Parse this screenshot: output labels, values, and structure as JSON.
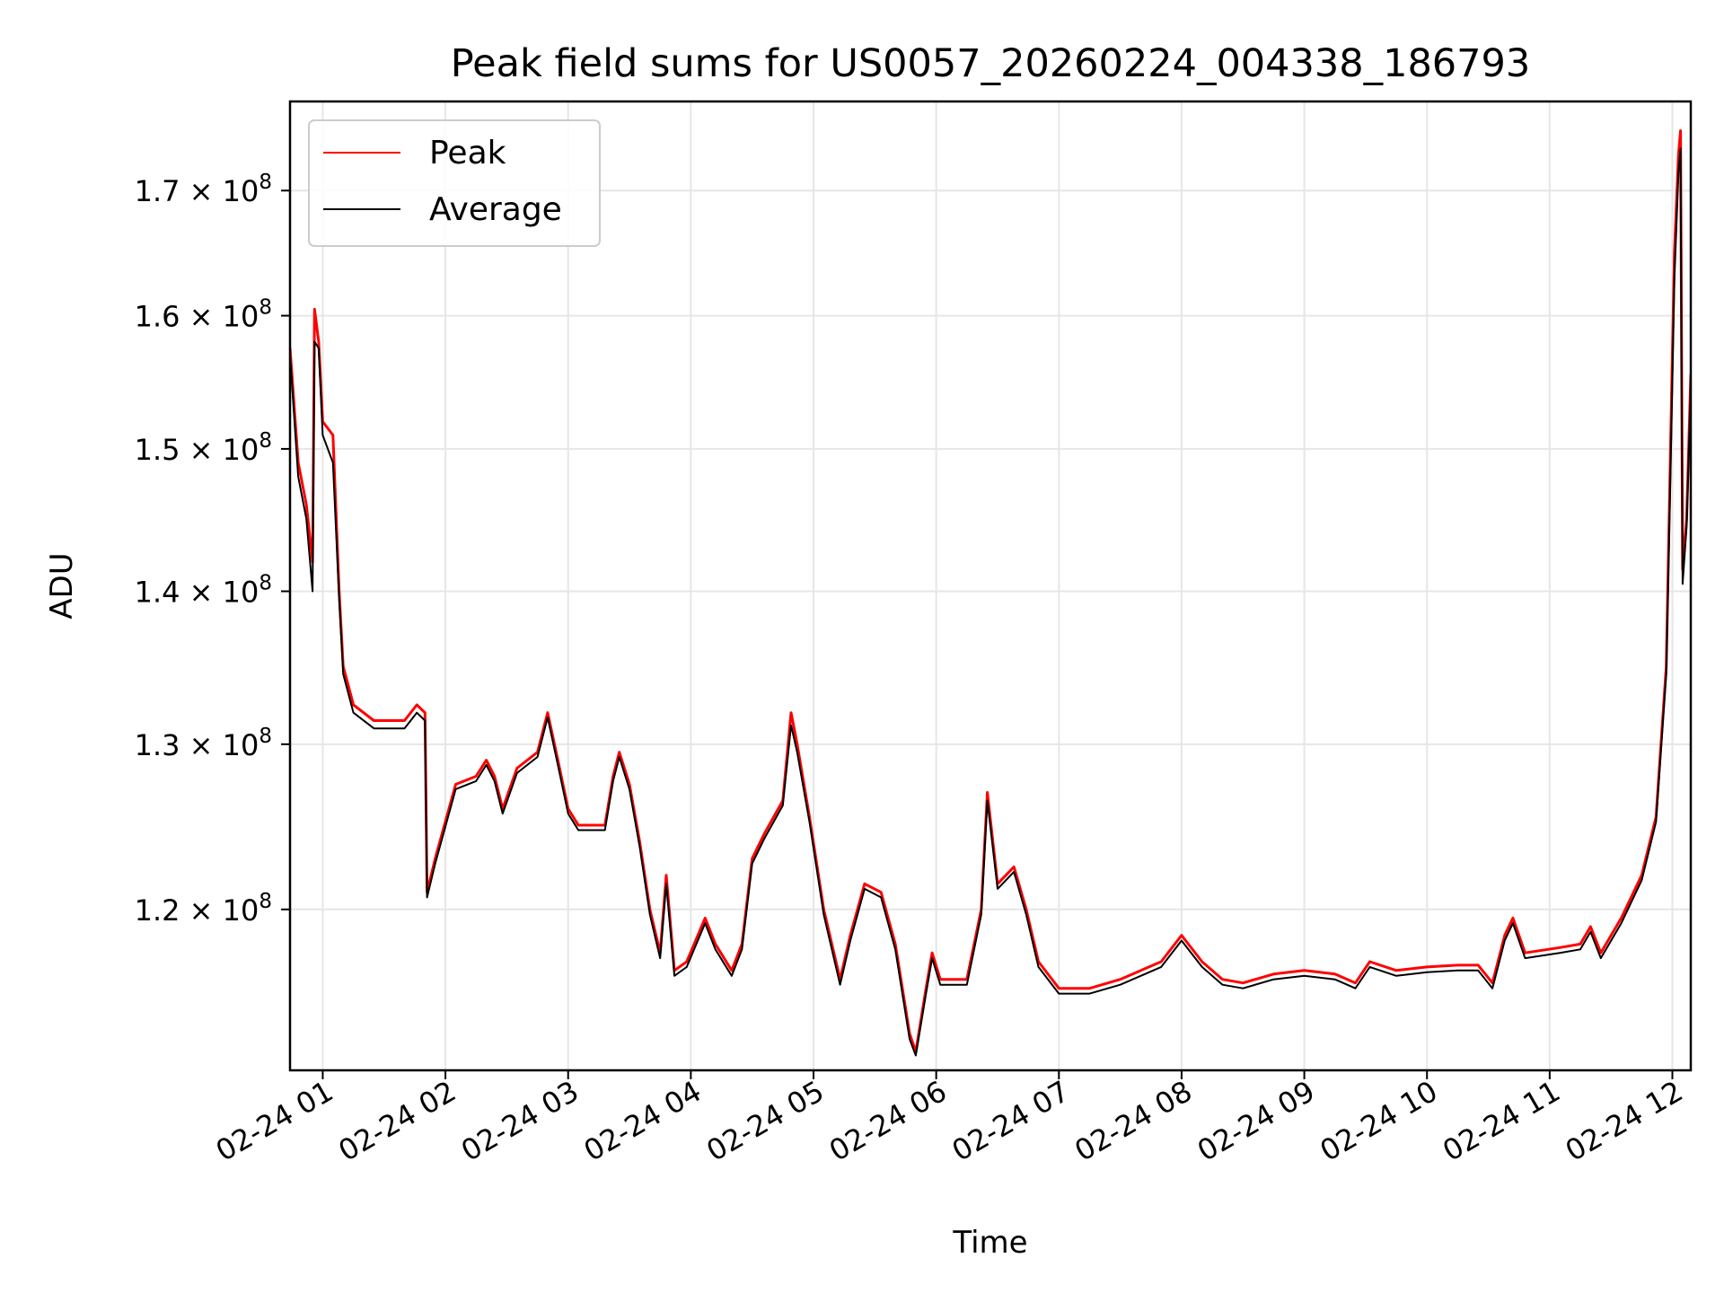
{
  "chart_data": {
    "type": "line",
    "title": "Peak field sums for US0057_20260224_004338_186793",
    "xlabel": "Time",
    "ylabel": "ADU",
    "y_scale": "log",
    "grid": true,
    "legend_placement": "top-left",
    "xlim": [
      "2026-02-24 00:44",
      "2026-02-24 12:09"
    ],
    "ylim": [
      111000000,
      177500000
    ],
    "x_ticks": [
      "02-24 01",
      "02-24 02",
      "02-24 03",
      "02-24 04",
      "02-24 05",
      "02-24 06",
      "02-24 07",
      "02-24 08",
      "02-24 09",
      "02-24 10",
      "02-24 11",
      "02-24 12"
    ],
    "y_ticks": [
      {
        "value": 120000000,
        "mantissa": "1.2",
        "label": "1.2 × 10^8"
      },
      {
        "value": 130000000,
        "mantissa": "1.3",
        "label": "1.3 × 10^8"
      },
      {
        "value": 140000000,
        "mantissa": "1.4",
        "label": "1.4 × 10^8"
      },
      {
        "value": 150000000,
        "mantissa": "1.5",
        "label": "1.5 × 10^8"
      },
      {
        "value": 160000000,
        "mantissa": "1.6",
        "label": "1.6 × 10^8"
      },
      {
        "value": 170000000,
        "mantissa": "1.7",
        "label": "1.7 × 10^8"
      }
    ],
    "series": [
      {
        "name": "Peak",
        "color": "#ff0000",
        "points": [
          [
            "2026-02-24 00:44",
            157500000
          ],
          [
            "2026-02-24 00:48",
            149000000
          ],
          [
            "2026-02-24 00:52",
            146000000
          ],
          [
            "2026-02-24 00:55",
            142000000
          ],
          [
            "2026-02-24 00:56",
            160500000
          ],
          [
            "2026-02-24 00:58",
            158000000
          ],
          [
            "2026-02-24 01:00",
            152000000
          ],
          [
            "2026-02-24 01:05",
            151000000
          ],
          [
            "2026-02-24 01:08",
            140000000
          ],
          [
            "2026-02-24 01:10",
            135000000
          ],
          [
            "2026-02-24 01:15",
            132500000
          ],
          [
            "2026-02-24 01:25",
            131500000
          ],
          [
            "2026-02-24 01:40",
            131500000
          ],
          [
            "2026-02-24 01:46",
            132500000
          ],
          [
            "2026-02-24 01:50",
            132000000
          ],
          [
            "2026-02-24 01:51",
            121000000
          ],
          [
            "2026-02-24 01:55",
            123000000
          ],
          [
            "2026-02-24 02:05",
            127500000
          ],
          [
            "2026-02-24 02:15",
            128000000
          ],
          [
            "2026-02-24 02:20",
            129000000
          ],
          [
            "2026-02-24 02:24",
            128000000
          ],
          [
            "2026-02-24 02:28",
            126000000
          ],
          [
            "2026-02-24 02:35",
            128500000
          ],
          [
            "2026-02-24 02:45",
            129500000
          ],
          [
            "2026-02-24 02:50",
            132000000
          ],
          [
            "2026-02-24 02:55",
            129000000
          ],
          [
            "2026-02-24 03:00",
            126000000
          ],
          [
            "2026-02-24 03:05",
            125000000
          ],
          [
            "2026-02-24 03:18",
            125000000
          ],
          [
            "2026-02-24 03:22",
            128000000
          ],
          [
            "2026-02-24 03:25",
            129500000
          ],
          [
            "2026-02-24 03:30",
            127500000
          ],
          [
            "2026-02-24 03:35",
            124000000
          ],
          [
            "2026-02-24 03:40",
            120000000
          ],
          [
            "2026-02-24 03:45",
            117500000
          ],
          [
            "2026-02-24 03:48",
            122000000
          ],
          [
            "2026-02-24 03:52",
            116500000
          ],
          [
            "2026-02-24 03:58",
            117000000
          ],
          [
            "2026-02-24 04:07",
            119500000
          ],
          [
            "2026-02-24 04:12",
            118000000
          ],
          [
            "2026-02-24 04:20",
            116500000
          ],
          [
            "2026-02-24 04:25",
            118000000
          ],
          [
            "2026-02-24 04:30",
            123000000
          ],
          [
            "2026-02-24 04:36",
            124500000
          ],
          [
            "2026-02-24 04:45",
            126500000
          ],
          [
            "2026-02-24 04:49",
            132000000
          ],
          [
            "2026-02-24 04:52",
            130000000
          ],
          [
            "2026-02-24 04:58",
            125500000
          ],
          [
            "2026-02-24 05:05",
            120000000
          ],
          [
            "2026-02-24 05:13",
            116000000
          ],
          [
            "2026-02-24 05:18",
            118500000
          ],
          [
            "2026-02-24 05:25",
            121500000
          ],
          [
            "2026-02-24 05:33",
            121000000
          ],
          [
            "2026-02-24 05:40",
            118000000
          ],
          [
            "2026-02-24 05:47",
            113000000
          ],
          [
            "2026-02-24 05:50",
            112000000
          ],
          [
            "2026-02-24 05:55",
            115500000
          ],
          [
            "2026-02-24 05:58",
            117500000
          ],
          [
            "2026-02-24 06:02",
            116000000
          ],
          [
            "2026-02-24 06:15",
            116000000
          ],
          [
            "2026-02-24 06:22",
            120000000
          ],
          [
            "2026-02-24 06:25",
            127000000
          ],
          [
            "2026-02-24 06:30",
            121500000
          ],
          [
            "2026-02-24 06:38",
            122500000
          ],
          [
            "2026-02-24 06:44",
            120000000
          ],
          [
            "2026-02-24 06:50",
            117000000
          ],
          [
            "2026-02-24 07:00",
            115500000
          ],
          [
            "2026-02-24 07:15",
            115500000
          ],
          [
            "2026-02-24 07:30",
            116000000
          ],
          [
            "2026-02-24 07:50",
            117000000
          ],
          [
            "2026-02-24 08:00",
            118500000
          ],
          [
            "2026-02-24 08:10",
            117000000
          ],
          [
            "2026-02-24 08:20",
            116000000
          ],
          [
            "2026-02-24 08:30",
            115800000
          ],
          [
            "2026-02-24 08:45",
            116300000
          ],
          [
            "2026-02-24 09:00",
            116500000
          ],
          [
            "2026-02-24 09:15",
            116300000
          ],
          [
            "2026-02-24 09:25",
            115800000
          ],
          [
            "2026-02-24 09:32",
            117000000
          ],
          [
            "2026-02-24 09:45",
            116500000
          ],
          [
            "2026-02-24 10:00",
            116700000
          ],
          [
            "2026-02-24 10:15",
            116800000
          ],
          [
            "2026-02-24 10:25",
            116800000
          ],
          [
            "2026-02-24 10:32",
            115800000
          ],
          [
            "2026-02-24 10:38",
            118500000
          ],
          [
            "2026-02-24 10:42",
            119500000
          ],
          [
            "2026-02-24 10:48",
            117500000
          ],
          [
            "2026-02-24 11:05",
            117800000
          ],
          [
            "2026-02-24 11:15",
            118000000
          ],
          [
            "2026-02-24 11:20",
            119000000
          ],
          [
            "2026-02-24 11:25",
            117500000
          ],
          [
            "2026-02-24 11:35",
            119500000
          ],
          [
            "2026-02-24 11:45",
            122000000
          ],
          [
            "2026-02-24 11:52",
            125500000
          ],
          [
            "2026-02-24 11:57",
            135000000
          ],
          [
            "2026-02-24 12:00",
            157000000
          ],
          [
            "2026-02-24 12:01",
            165000000
          ],
          [
            "2026-02-24 12:03",
            173000000
          ],
          [
            "2026-02-24 12:04",
            175000000
          ],
          [
            "2026-02-24 12:05",
            141500000
          ],
          [
            "2026-02-24 12:07",
            145000000
          ],
          [
            "2026-02-24 12:09",
            155500000
          ]
        ]
      },
      {
        "name": "Average",
        "color": "#000000",
        "points": [
          [
            "2026-02-24 00:44",
            157000000
          ],
          [
            "2026-02-24 00:48",
            148000000
          ],
          [
            "2026-02-24 00:52",
            145000000
          ],
          [
            "2026-02-24 00:55",
            140000000
          ],
          [
            "2026-02-24 00:56",
            158000000
          ],
          [
            "2026-02-24 00:58",
            157500000
          ],
          [
            "2026-02-24 01:00",
            151000000
          ],
          [
            "2026-02-24 01:05",
            149000000
          ],
          [
            "2026-02-24 01:08",
            139500000
          ],
          [
            "2026-02-24 01:10",
            134500000
          ],
          [
            "2026-02-24 01:15",
            132000000
          ],
          [
            "2026-02-24 01:25",
            131000000
          ],
          [
            "2026-02-24 01:40",
            131000000
          ],
          [
            "2026-02-24 01:46",
            132000000
          ],
          [
            "2026-02-24 01:50",
            131500000
          ],
          [
            "2026-02-24 01:51",
            120700000
          ],
          [
            "2026-02-24 01:55",
            122700000
          ],
          [
            "2026-02-24 02:05",
            127200000
          ],
          [
            "2026-02-24 02:15",
            127700000
          ],
          [
            "2026-02-24 02:20",
            128700000
          ],
          [
            "2026-02-24 02:24",
            127700000
          ],
          [
            "2026-02-24 02:28",
            125700000
          ],
          [
            "2026-02-24 02:35",
            128200000
          ],
          [
            "2026-02-24 02:45",
            129200000
          ],
          [
            "2026-02-24 02:50",
            131700000
          ],
          [
            "2026-02-24 02:55",
            128700000
          ],
          [
            "2026-02-24 03:00",
            125700000
          ],
          [
            "2026-02-24 03:05",
            124700000
          ],
          [
            "2026-02-24 03:18",
            124700000
          ],
          [
            "2026-02-24 03:22",
            127700000
          ],
          [
            "2026-02-24 03:25",
            129200000
          ],
          [
            "2026-02-24 03:30",
            127200000
          ],
          [
            "2026-02-24 03:35",
            123700000
          ],
          [
            "2026-02-24 03:40",
            119700000
          ],
          [
            "2026-02-24 03:45",
            117200000
          ],
          [
            "2026-02-24 03:48",
            121500000
          ],
          [
            "2026-02-24 03:52",
            116200000
          ],
          [
            "2026-02-24 03:58",
            116700000
          ],
          [
            "2026-02-24 04:07",
            119200000
          ],
          [
            "2026-02-24 04:12",
            117700000
          ],
          [
            "2026-02-24 04:20",
            116200000
          ],
          [
            "2026-02-24 04:25",
            117700000
          ],
          [
            "2026-02-24 04:30",
            122700000
          ],
          [
            "2026-02-24 04:36",
            124200000
          ],
          [
            "2026-02-24 04:45",
            126200000
          ],
          [
            "2026-02-24 04:49",
            131200000
          ],
          [
            "2026-02-24 04:52",
            129500000
          ],
          [
            "2026-02-24 04:58",
            125200000
          ],
          [
            "2026-02-24 05:05",
            119700000
          ],
          [
            "2026-02-24 05:13",
            115700000
          ],
          [
            "2026-02-24 05:18",
            118200000
          ],
          [
            "2026-02-24 05:25",
            121200000
          ],
          [
            "2026-02-24 05:33",
            120700000
          ],
          [
            "2026-02-24 05:40",
            117700000
          ],
          [
            "2026-02-24 05:47",
            112700000
          ],
          [
            "2026-02-24 05:50",
            111800000
          ],
          [
            "2026-02-24 05:55",
            115200000
          ],
          [
            "2026-02-24 05:58",
            117200000
          ],
          [
            "2026-02-24 06:02",
            115700000
          ],
          [
            "2026-02-24 06:15",
            115700000
          ],
          [
            "2026-02-24 06:22",
            119700000
          ],
          [
            "2026-02-24 06:25",
            126500000
          ],
          [
            "2026-02-24 06:30",
            121200000
          ],
          [
            "2026-02-24 06:38",
            122200000
          ],
          [
            "2026-02-24 06:44",
            119700000
          ],
          [
            "2026-02-24 06:50",
            116700000
          ],
          [
            "2026-02-24 07:00",
            115200000
          ],
          [
            "2026-02-24 07:15",
            115200000
          ],
          [
            "2026-02-24 07:30",
            115700000
          ],
          [
            "2026-02-24 07:50",
            116700000
          ],
          [
            "2026-02-24 08:00",
            118200000
          ],
          [
            "2026-02-24 08:10",
            116700000
          ],
          [
            "2026-02-24 08:20",
            115700000
          ],
          [
            "2026-02-24 08:30",
            115500000
          ],
          [
            "2026-02-24 08:45",
            116000000
          ],
          [
            "2026-02-24 09:00",
            116200000
          ],
          [
            "2026-02-24 09:15",
            116000000
          ],
          [
            "2026-02-24 09:25",
            115500000
          ],
          [
            "2026-02-24 09:32",
            116700000
          ],
          [
            "2026-02-24 09:45",
            116200000
          ],
          [
            "2026-02-24 10:00",
            116400000
          ],
          [
            "2026-02-24 10:15",
            116500000
          ],
          [
            "2026-02-24 10:25",
            116500000
          ],
          [
            "2026-02-24 10:32",
            115500000
          ],
          [
            "2026-02-24 10:38",
            118200000
          ],
          [
            "2026-02-24 10:42",
            119200000
          ],
          [
            "2026-02-24 10:48",
            117200000
          ],
          [
            "2026-02-24 11:05",
            117500000
          ],
          [
            "2026-02-24 11:15",
            117700000
          ],
          [
            "2026-02-24 11:20",
            118700000
          ],
          [
            "2026-02-24 11:25",
            117200000
          ],
          [
            "2026-02-24 11:35",
            119200000
          ],
          [
            "2026-02-24 11:45",
            121700000
          ],
          [
            "2026-02-24 11:52",
            125200000
          ],
          [
            "2026-02-24 11:57",
            134500000
          ],
          [
            "2026-02-24 12:00",
            155000000
          ],
          [
            "2026-02-24 12:01",
            163000000
          ],
          [
            "2026-02-24 12:03",
            171500000
          ],
          [
            "2026-02-24 12:04",
            173500000
          ],
          [
            "2026-02-24 12:05",
            140500000
          ],
          [
            "2026-02-24 12:07",
            144500000
          ],
          [
            "2026-02-24 12:09",
            154500000
          ]
        ]
      }
    ]
  }
}
